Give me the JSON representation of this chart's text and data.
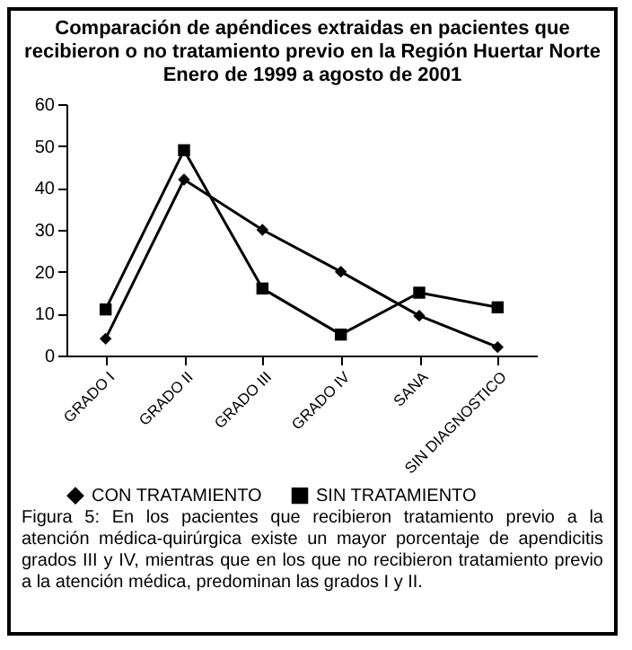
{
  "chart_data": {
    "type": "line",
    "title": "Comparación de apéndices extraidas en pacientes que recibieron o no tratamiento previo en la Región Huertar Norte",
    "subtitle": "Enero de 1999 a agosto de 2001",
    "categories": [
      "GRADO I",
      "GRADO II",
      "GRADO III",
      "GRADO IV",
      "SANA",
      "SIN DIAGNOSTICO"
    ],
    "series": [
      {
        "name": "CON TRATAMIENTO",
        "color": "#000000",
        "marker": "diamond",
        "values": [
          4,
          42,
          30,
          20,
          9.5,
          2
        ]
      },
      {
        "name": "SIN TRATAMIENTO",
        "color": "#000000",
        "marker": "square",
        "values": [
          11,
          49,
          16,
          5,
          15,
          11.5
        ]
      }
    ],
    "ylim": [
      0,
      60
    ],
    "yticks": [
      0,
      10,
      20,
      30,
      40,
      50,
      60
    ],
    "grid": false,
    "legend": "bottom",
    "annotations": [
      "Figura 5: En los pacientes que recibieron tratamiento previo a la atención médica-quirúrgica existe un mayor porcentaje de apendicitis grados III y IV, mientras que en los que no recibieron tratamiento previo a la atención médica, predominan las grados I y II."
    ]
  }
}
